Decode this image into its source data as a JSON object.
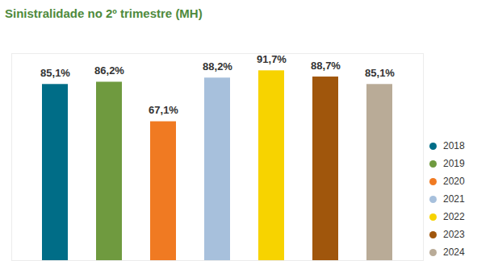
{
  "chart_data": {
    "type": "bar",
    "title": "Sinistralidade no 2º trimestre (MH)",
    "categories": [
      "2018",
      "2019",
      "2020",
      "2021",
      "2022",
      "2023",
      "2024"
    ],
    "values": [
      85.1,
      86.2,
      67.1,
      88.2,
      91.7,
      88.7,
      85.1
    ],
    "value_labels": [
      "85,1%",
      "86,2%",
      "67,1%",
      "88,2%",
      "91,7%",
      "88,7%",
      "85,1%"
    ],
    "colors": [
      "#006d87",
      "#6f9a3f",
      "#f07a22",
      "#a7c0dc",
      "#f7d300",
      "#a0560c",
      "#b9ab97"
    ],
    "ylim": [
      0,
      100
    ],
    "yticks": [],
    "data_labels": true,
    "tick_labels": false,
    "legend": "right",
    "grid": false
  }
}
